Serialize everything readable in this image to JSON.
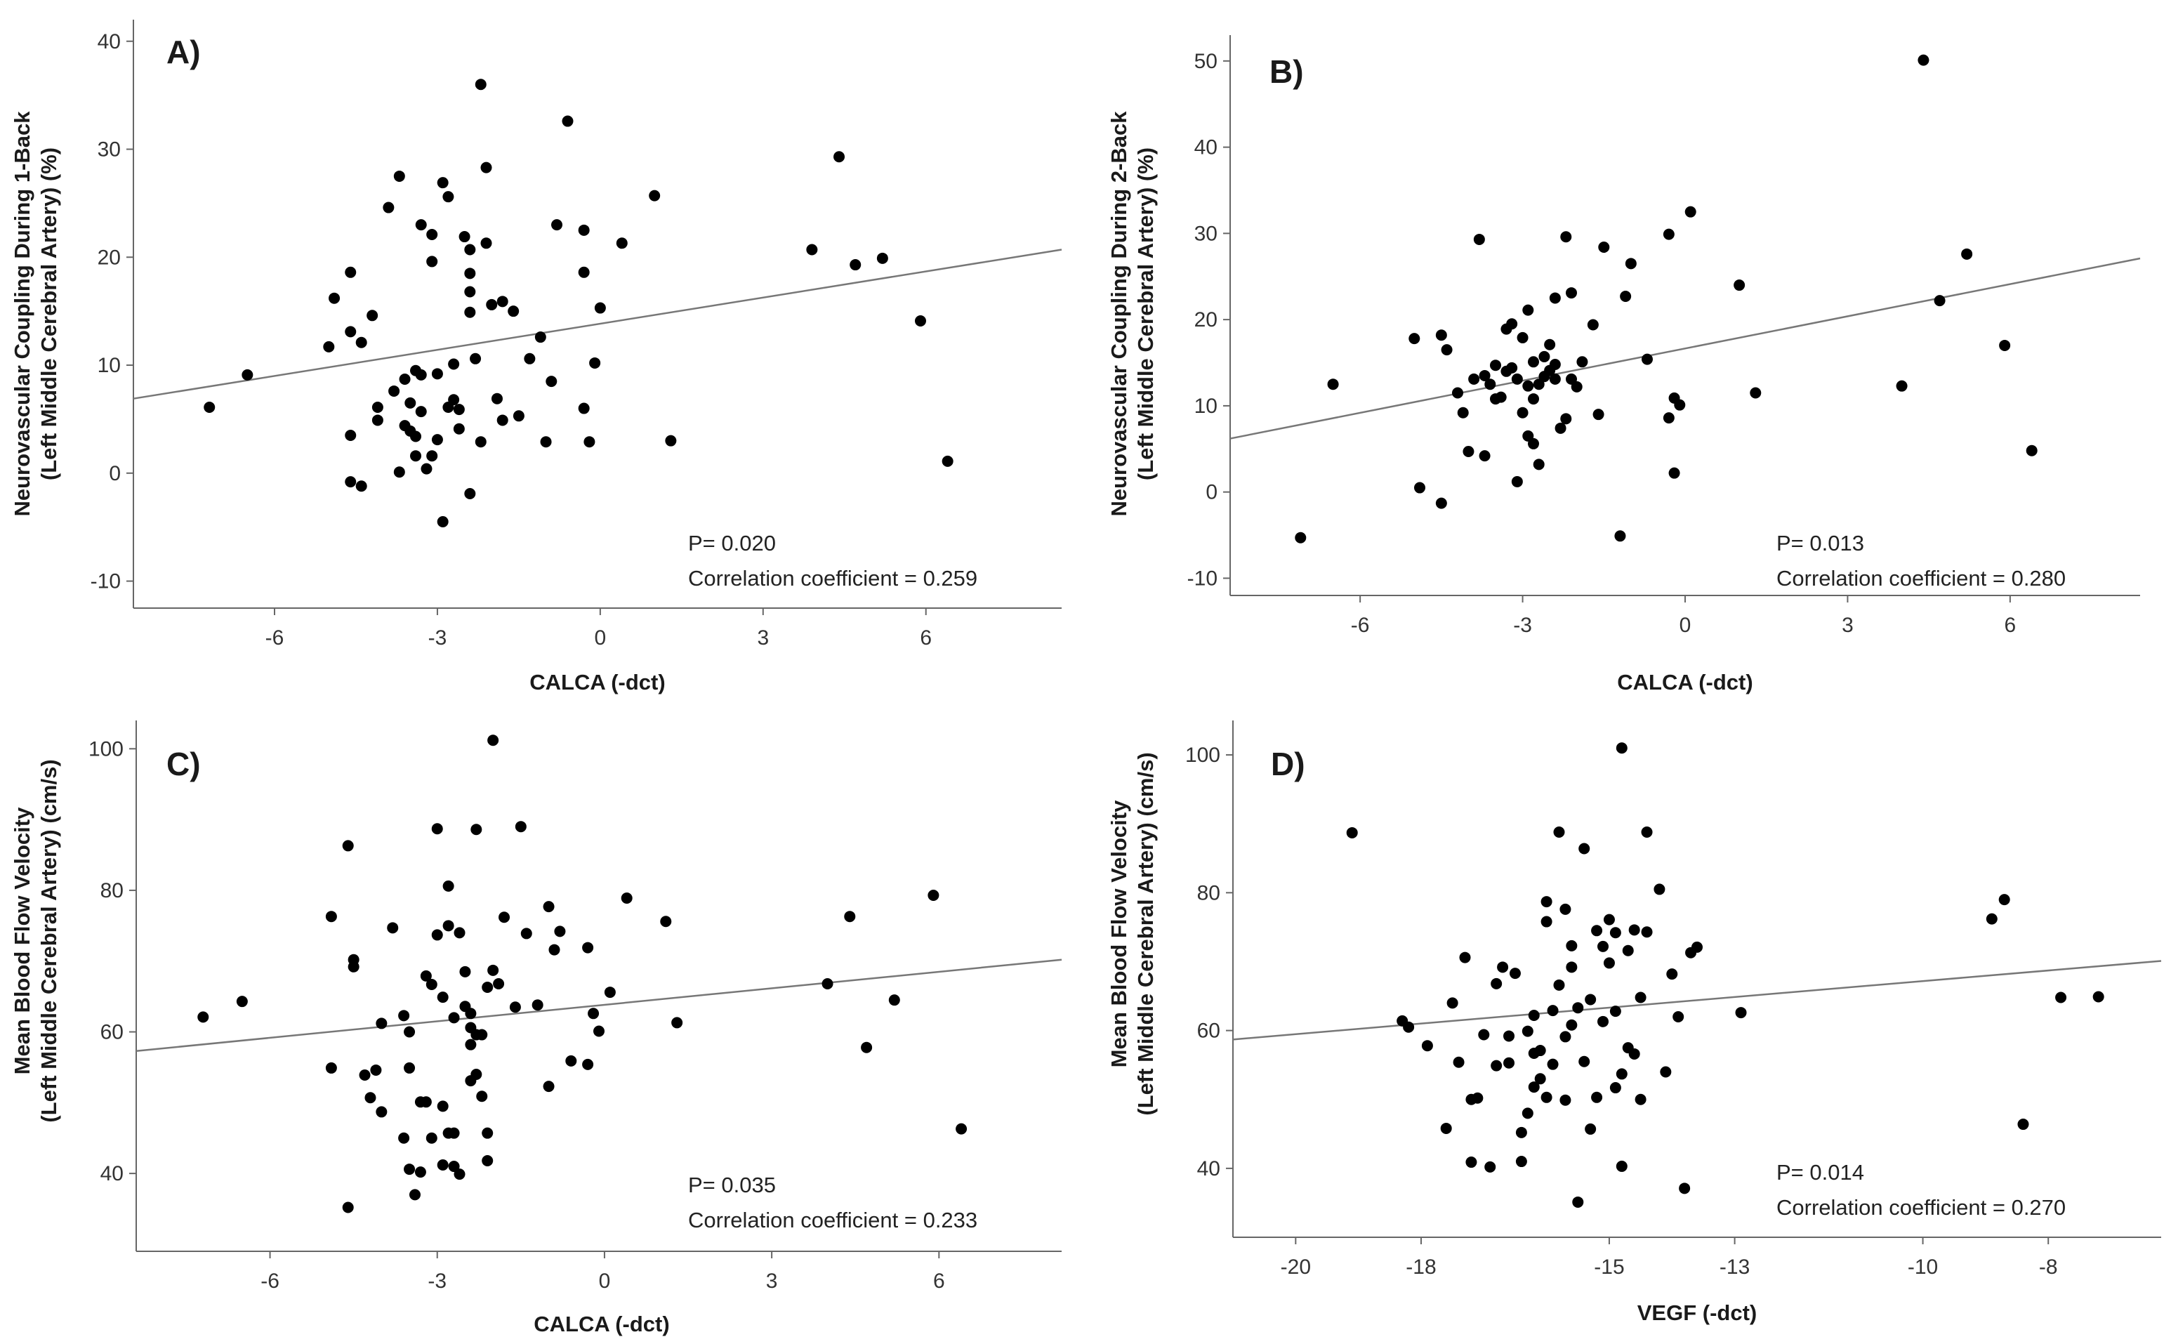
{
  "chart_data": [
    {
      "type": "scatter",
      "panel_label": "A)",
      "xlabel": "CALCA (-dct)",
      "ylabel_line1": "Neurovascular Coupling During 1-Back",
      "ylabel_line2": "(Left Middle Cerebral Artery) (%)",
      "xlim": [
        -8.6,
        8.5
      ],
      "ylim": [
        -12.5,
        42
      ],
      "xticks": [
        -6,
        -3,
        0,
        3,
        6
      ],
      "yticks": [
        -10,
        0,
        10,
        20,
        30,
        40
      ],
      "p_text": "P= 0.020",
      "r_text": "Correlation coefficient = 0.259",
      "fit": {
        "x": [
          -8.6,
          8.5
        ],
        "y": [
          6.9,
          20.7
        ]
      },
      "points": [
        [
          -7.2,
          6.1
        ],
        [
          -6.5,
          9.1
        ],
        [
          -5,
          11.7
        ],
        [
          -4.9,
          16.2
        ],
        [
          -4.6,
          18.6
        ],
        [
          -4.6,
          13.1
        ],
        [
          -4.4,
          12.1
        ],
        [
          -4.2,
          14.6
        ],
        [
          -4.6,
          3.5
        ],
        [
          -4.6,
          -0.8
        ],
        [
          -4.4,
          -1.2
        ],
        [
          -4.1,
          6.1
        ],
        [
          -4.1,
          4.9
        ],
        [
          -3.9,
          24.6
        ],
        [
          -3.7,
          27.5
        ],
        [
          -3.6,
          8.7
        ],
        [
          -3.5,
          6.5
        ],
        [
          -3.5,
          3.9
        ],
        [
          -3.4,
          3.4
        ],
        [
          -3.4,
          9.5
        ],
        [
          -3.3,
          23
        ],
        [
          -3.1,
          22.1
        ],
        [
          -3.1,
          19.6
        ],
        [
          -3,
          9.2
        ],
        [
          -2.9,
          26.9
        ],
        [
          -2.8,
          25.6
        ],
        [
          -2.7,
          10.1
        ],
        [
          -2.6,
          5.9
        ],
        [
          -2.6,
          4.1
        ],
        [
          -2.5,
          21.9
        ],
        [
          -2.4,
          20.7
        ],
        [
          -2.4,
          18.5
        ],
        [
          -2.4,
          16.8
        ],
        [
          -2.4,
          14.9
        ],
        [
          -2.3,
          10.6
        ],
        [
          -2.2,
          36
        ],
        [
          -2.1,
          28.3
        ],
        [
          -2.1,
          21.3
        ],
        [
          -2,
          15.6
        ],
        [
          -1.9,
          6.9
        ],
        [
          -1.8,
          15.9
        ],
        [
          -1.8,
          4.9
        ],
        [
          -1.6,
          15
        ],
        [
          -1.5,
          5.3
        ],
        [
          -1.3,
          10.6
        ],
        [
          -1.1,
          12.6
        ],
        [
          -1,
          2.9
        ],
        [
          -0.9,
          8.5
        ],
        [
          -0.8,
          23
        ],
        [
          -0.6,
          32.6
        ],
        [
          -0.3,
          22.5
        ],
        [
          -0.3,
          18.6
        ],
        [
          -0.3,
          6
        ],
        [
          -0.2,
          2.9
        ],
        [
          -0.1,
          10.2
        ],
        [
          0,
          15.3
        ],
        [
          0.4,
          21.3
        ],
        [
          1,
          25.7
        ],
        [
          1.3,
          3
        ],
        [
          3.9,
          20.7
        ],
        [
          4.4,
          29.3
        ],
        [
          4.7,
          19.3
        ],
        [
          5.2,
          19.9
        ],
        [
          5.9,
          14.1
        ],
        [
          6.4,
          1.1
        ],
        [
          -2.9,
          -4.5
        ],
        [
          -2.4,
          -1.9
        ],
        [
          -3.2,
          0.4
        ],
        [
          -3.7,
          0.1
        ],
        [
          -3.4,
          1.6
        ],
        [
          -3.1,
          1.6
        ],
        [
          -3,
          3.1
        ],
        [
          -2.2,
          2.9
        ],
        [
          -2.8,
          6.1
        ],
        [
          -3.3,
          5.7
        ],
        [
          -2.7,
          6.8
        ],
        [
          -3.6,
          4.4
        ],
        [
          -3.3,
          9.1
        ],
        [
          -3.8,
          7.6
        ]
      ]
    },
    {
      "type": "scatter",
      "panel_label": "B)",
      "xlabel": "CALCA (-dct)",
      "ylabel_line1": "Neurovascular Coupling During 2-Back",
      "ylabel_line2": "(Left Middle Cerebral Artery) (%)",
      "xlim": [
        -8.4,
        8.4
      ],
      "ylim": [
        -12,
        53
      ],
      "xticks": [
        -6,
        -3,
        0,
        3,
        6
      ],
      "yticks": [
        -10,
        0,
        10,
        20,
        30,
        40,
        50
      ],
      "p_text": "P= 0.013",
      "r_text": "Correlation coefficient = 0.280",
      "fit": {
        "x": [
          -8.4,
          8.4
        ],
        "y": [
          6.2,
          27.1
        ]
      },
      "points": [
        [
          -7.1,
          -5.3
        ],
        [
          -6.5,
          12.5
        ],
        [
          -5,
          17.8
        ],
        [
          -4.9,
          0.5
        ],
        [
          -4.5,
          -1.3
        ],
        [
          -4.5,
          18.2
        ],
        [
          -4.4,
          16.5
        ],
        [
          -4.2,
          11.5
        ],
        [
          -4.1,
          9.2
        ],
        [
          -4,
          4.7
        ],
        [
          -3.9,
          13.1
        ],
        [
          -3.8,
          29.3
        ],
        [
          -3.7,
          4.2
        ],
        [
          -3.6,
          12.5
        ],
        [
          -3.5,
          14.7
        ],
        [
          -3.4,
          11
        ],
        [
          -3.3,
          18.9
        ],
        [
          -3.2,
          19.5
        ],
        [
          -3.2,
          14.4
        ],
        [
          -3.1,
          13.1
        ],
        [
          -3.1,
          1.2
        ],
        [
          -3,
          17.9
        ],
        [
          -3,
          9.2
        ],
        [
          -2.9,
          21.1
        ],
        [
          -2.9,
          6.5
        ],
        [
          -2.8,
          15.1
        ],
        [
          -2.8,
          5.6
        ],
        [
          -2.7,
          12.5
        ],
        [
          -2.7,
          3.2
        ],
        [
          -2.6,
          13.4
        ],
        [
          -2.5,
          14.1
        ],
        [
          -2.5,
          17.1
        ],
        [
          -2.4,
          13.1
        ],
        [
          -2.4,
          22.5
        ],
        [
          -2.3,
          7.4
        ],
        [
          -2.2,
          29.6
        ],
        [
          -2.2,
          8.5
        ],
        [
          -2.1,
          23.1
        ],
        [
          -2.1,
          13.1
        ],
        [
          -1.9,
          15.1
        ],
        [
          -1.7,
          19.4
        ],
        [
          -1.5,
          28.4
        ],
        [
          -1.2,
          -5.1
        ],
        [
          -1.1,
          22.7
        ],
        [
          -1,
          26.5
        ],
        [
          -0.7,
          15.4
        ],
        [
          -0.3,
          29.9
        ],
        [
          -0.3,
          8.6
        ],
        [
          -0.2,
          2.2
        ],
        [
          -0.2,
          10.9
        ],
        [
          -0.1,
          10.1
        ],
        [
          0.1,
          32.5
        ],
        [
          1,
          24
        ],
        [
          1.3,
          11.5
        ],
        [
          4,
          12.3
        ],
        [
          4.4,
          50.1
        ],
        [
          4.7,
          22.2
        ],
        [
          5.2,
          27.6
        ],
        [
          5.9,
          17
        ],
        [
          6.4,
          4.8
        ],
        [
          -1.6,
          9
        ],
        [
          -2.6,
          15.7
        ],
        [
          -2.9,
          12.3
        ],
        [
          -3.3,
          14
        ],
        [
          -2,
          12.2
        ],
        [
          -2.4,
          14.8
        ],
        [
          -2.8,
          10.8
        ],
        [
          -3.5,
          10.8
        ],
        [
          -3.7,
          13.5
        ]
      ]
    },
    {
      "type": "scatter",
      "panel_label": "C)",
      "xlabel": "CALCA (-dct)",
      "ylabel_line1": "Mean Blood Flow Velocity",
      "ylabel_line2": "(Left Middle Cerebral Artery) (cm/s)",
      "xlim": [
        -8.4,
        8.2
      ],
      "ylim": [
        29,
        104
      ],
      "xticks": [
        -6,
        -3,
        0,
        3,
        6
      ],
      "yticks": [
        40,
        60,
        80,
        100
      ],
      "p_text": "P= 0.035",
      "r_text": "Correlation coefficient = 0.233",
      "fit": {
        "x": [
          -8.4,
          8.2
        ],
        "y": [
          57.3,
          70.2
        ]
      },
      "points": [
        [
          -7.2,
          62.1
        ],
        [
          -6.5,
          64.3
        ],
        [
          -4.9,
          76.3
        ],
        [
          -4.9,
          54.9
        ],
        [
          -4.6,
          86.3
        ],
        [
          -4.5,
          70.2
        ],
        [
          -4.5,
          69.2
        ],
        [
          -4.3,
          53.9
        ],
        [
          -4.2,
          50.7
        ],
        [
          -4.1,
          54.6
        ],
        [
          -4,
          48.7
        ],
        [
          -4,
          61.2
        ],
        [
          -3.8,
          74.7
        ],
        [
          -3.6,
          62.3
        ],
        [
          -3.5,
          60
        ],
        [
          -3.5,
          54.9
        ],
        [
          -3.4,
          37
        ],
        [
          -3.3,
          40.2
        ],
        [
          -3.3,
          50.1
        ],
        [
          -3.2,
          67.9
        ],
        [
          -3.1,
          66.7
        ],
        [
          -3.1,
          45
        ],
        [
          -3,
          88.7
        ],
        [
          -3,
          73.7
        ],
        [
          -2.9,
          64.9
        ],
        [
          -2.8,
          80.6
        ],
        [
          -2.8,
          75
        ],
        [
          -2.7,
          62
        ],
        [
          -2.7,
          45.7
        ],
        [
          -2.6,
          74
        ],
        [
          -2.5,
          68.5
        ],
        [
          -2.4,
          62.6
        ],
        [
          -2.4,
          60.6
        ],
        [
          -2.3,
          88.6
        ],
        [
          -2.3,
          59.6
        ],
        [
          -2.3,
          54
        ],
        [
          -2.2,
          50.9
        ],
        [
          -2.1,
          45.7
        ],
        [
          -2.1,
          66.3
        ],
        [
          -2,
          101.2
        ],
        [
          -2,
          68.7
        ],
        [
          -1.9,
          66.8
        ],
        [
          -1.8,
          76.2
        ],
        [
          -1.6,
          63.5
        ],
        [
          -1.5,
          89
        ],
        [
          -1.4,
          73.9
        ],
        [
          -1.2,
          63.8
        ],
        [
          -1,
          77.7
        ],
        [
          -0.9,
          71.6
        ],
        [
          -0.8,
          74.2
        ],
        [
          -0.6,
          55.9
        ],
        [
          -0.3,
          71.9
        ],
        [
          -0.3,
          55.4
        ],
        [
          -0.2,
          62.6
        ],
        [
          -0.1,
          60.1
        ],
        [
          0.1,
          65.6
        ],
        [
          0.4,
          78.9
        ],
        [
          1.1,
          75.6
        ],
        [
          1.3,
          61.3
        ],
        [
          4,
          66.8
        ],
        [
          4.4,
          76.3
        ],
        [
          4.7,
          57.8
        ],
        [
          5.2,
          64.5
        ],
        [
          5.9,
          79.3
        ],
        [
          6.4,
          46.3
        ],
        [
          -4.6,
          35.2
        ],
        [
          -3.6,
          45
        ],
        [
          -2.9,
          41.2
        ],
        [
          -2.7,
          41
        ],
        [
          -2.6,
          39.9
        ],
        [
          -2.8,
          45.7
        ],
        [
          -2.4,
          53.1
        ],
        [
          -3.2,
          50.1
        ],
        [
          -2.9,
          49.5
        ],
        [
          -2.4,
          58.2
        ],
        [
          -2.5,
          63.6
        ],
        [
          -1,
          52.3
        ],
        [
          -2.2,
          59.6
        ],
        [
          -2.1,
          41.8
        ],
        [
          -3.5,
          40.6
        ]
      ]
    },
    {
      "type": "scatter",
      "panel_label": "D)",
      "xlabel": "VEGF (-dct)",
      "ylabel_line1": "Mean Blood Flow Velocity",
      "ylabel_line2": "(Left Middle Cerebral Artery) (cm/s)",
      "xlim": [
        -21,
        -6.2
      ],
      "ylim": [
        30,
        105
      ],
      "xticks": [
        -20,
        -18,
        -15,
        -13,
        -10,
        -8
      ],
      "yticks": [
        40,
        60,
        80,
        100
      ],
      "p_text": "P= 0.014",
      "r_text": "Correlation coefficient = 0.270",
      "fit": {
        "x": [
          -21,
          -6.2
        ],
        "y": [
          58.7,
          70.1
        ]
      },
      "points": [
        [
          -19.1,
          88.7
        ],
        [
          -18.3,
          61.4
        ],
        [
          -18.2,
          60.5
        ],
        [
          -17.9,
          57.8
        ],
        [
          -17.6,
          45.8
        ],
        [
          -17.5,
          64
        ],
        [
          -17.3,
          70.6
        ],
        [
          -17.2,
          40.9
        ],
        [
          -17.2,
          50
        ],
        [
          -17.1,
          50.2
        ],
        [
          -17,
          59.4
        ],
        [
          -16.9,
          40.2
        ],
        [
          -16.8,
          54.9
        ],
        [
          -16.8,
          66.8
        ],
        [
          -16.7,
          69.2
        ],
        [
          -16.6,
          59.2
        ],
        [
          -16.5,
          68.3
        ],
        [
          -16.4,
          45.2
        ],
        [
          -16.4,
          41
        ],
        [
          -16.3,
          48
        ],
        [
          -16.3,
          59.9
        ],
        [
          -16.2,
          51.8
        ],
        [
          -16.2,
          62.2
        ],
        [
          -16.1,
          53
        ],
        [
          -16,
          75.8
        ],
        [
          -16,
          78.7
        ],
        [
          -16,
          50.3
        ],
        [
          -15.9,
          55.1
        ],
        [
          -15.9,
          62.9
        ],
        [
          -15.8,
          88.8
        ],
        [
          -15.8,
          66.6
        ],
        [
          -15.7,
          77.6
        ],
        [
          -15.7,
          59.1
        ],
        [
          -15.6,
          69.2
        ],
        [
          -15.6,
          60.8
        ],
        [
          -15.5,
          35.1
        ],
        [
          -15.5,
          63.3
        ],
        [
          -15.4,
          86.4
        ],
        [
          -15.4,
          55.5
        ],
        [
          -15.3,
          45.7
        ],
        [
          -15.2,
          74.5
        ],
        [
          -15.1,
          72.2
        ],
        [
          -15.1,
          61.3
        ],
        [
          -15,
          76.1
        ],
        [
          -15,
          69.8
        ],
        [
          -14.9,
          62.8
        ],
        [
          -14.9,
          74.2
        ],
        [
          -14.8,
          101
        ],
        [
          -14.8,
          53.7
        ],
        [
          -14.8,
          40.3
        ],
        [
          -14.7,
          71.6
        ],
        [
          -14.7,
          57.5
        ],
        [
          -14.6,
          74.6
        ],
        [
          -14.6,
          56.6
        ],
        [
          -14.5,
          64.8
        ],
        [
          -14.4,
          88.8
        ],
        [
          -14.4,
          74.3
        ],
        [
          -14.2,
          80.5
        ],
        [
          -14.1,
          54
        ],
        [
          -14,
          68.2
        ],
        [
          -13.9,
          62
        ],
        [
          -13.8,
          37.1
        ],
        [
          -13.7,
          71.3
        ],
        [
          -13.6,
          72.1
        ],
        [
          -12.9,
          62.6
        ],
        [
          -8.9,
          76.2
        ],
        [
          -8.7,
          79
        ],
        [
          -8.4,
          46.4
        ],
        [
          -7.8,
          64.8
        ],
        [
          -7.2,
          64.9
        ],
        [
          -15.2,
          50.3
        ],
        [
          -15.7,
          49.9
        ],
        [
          -16.1,
          57.1
        ],
        [
          -14.5,
          50
        ],
        [
          -15.3,
          64.5
        ],
        [
          -16.6,
          55.3
        ],
        [
          -14.9,
          51.7
        ],
        [
          -17.4,
          55.4
        ],
        [
          -15.6,
          72.3
        ],
        [
          -16.2,
          56.7
        ]
      ]
    }
  ]
}
